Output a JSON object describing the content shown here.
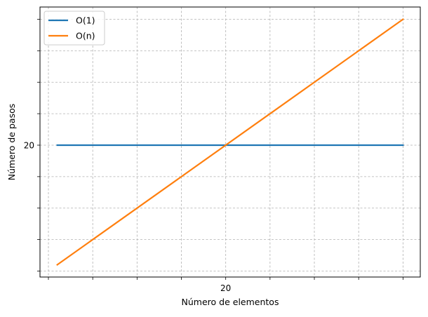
{
  "chart_data": {
    "type": "line",
    "xlabel": "Número de elementos",
    "ylabel": "Número de pasos",
    "x": [
      1,
      40
    ],
    "xlim": [
      -0.95,
      41.95
    ],
    "ylim": [
      -0.95,
      41.95
    ],
    "xticks": [
      0,
      5,
      10,
      15,
      20,
      25,
      30,
      35,
      40
    ],
    "yticks": [
      0,
      5,
      10,
      15,
      20,
      25,
      30,
      35,
      40
    ],
    "xtick_labels": [
      "",
      "",
      "",
      "",
      "20",
      "",
      "",
      "",
      ""
    ],
    "ytick_labels": [
      "",
      "",
      "",
      "",
      "20",
      "",
      "",
      "",
      ""
    ],
    "grid": true,
    "legend_position": "top-left",
    "series": [
      {
        "name": "O(1)",
        "x": [
          1,
          40
        ],
        "values": [
          20,
          20
        ],
        "color": "#1f77b4"
      },
      {
        "name": "O(n)",
        "x": [
          1,
          40
        ],
        "values": [
          1,
          40
        ],
        "color": "#ff7f0e"
      }
    ]
  }
}
